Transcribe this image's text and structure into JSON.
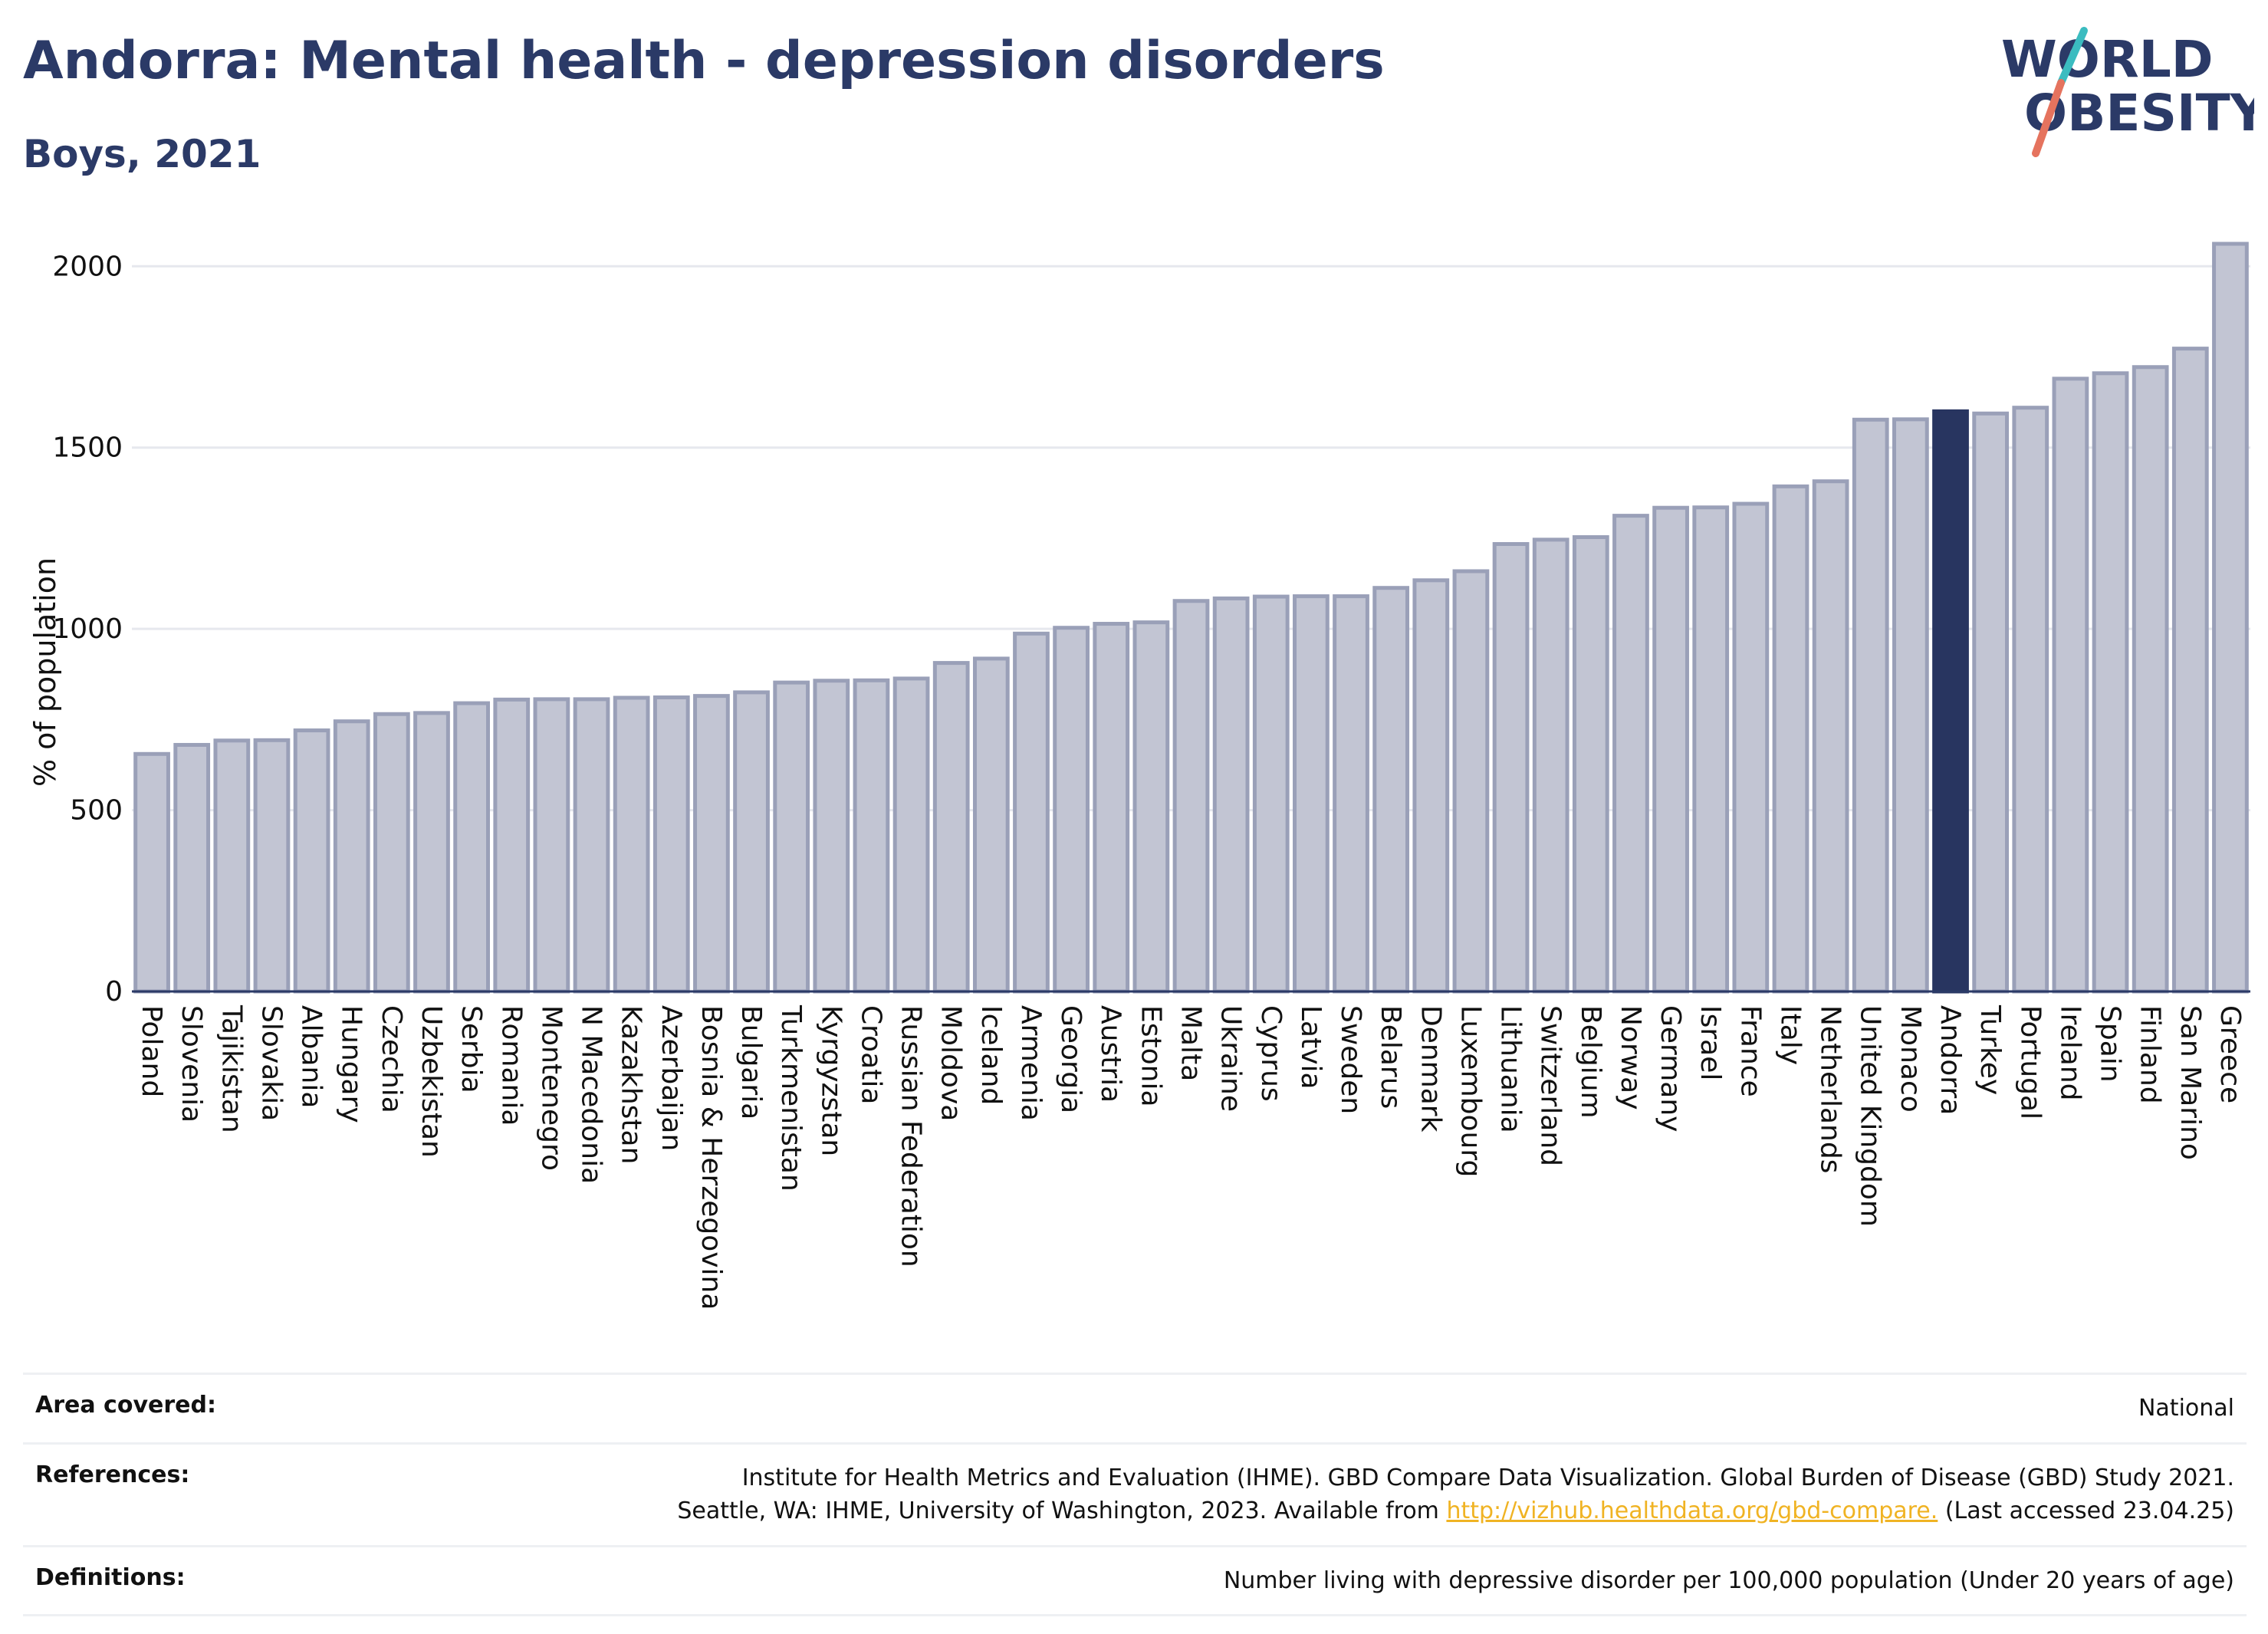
{
  "header": {
    "title": "Andorra: Mental health - depression disorders",
    "subtitle": "Boys, 2021"
  },
  "logo": {
    "line1": "WORLD",
    "line2": "OBESITY",
    "colors": {
      "text": "#2b3a67",
      "slash_top": "#3bbcc0",
      "slash_bottom": "#e5735e"
    }
  },
  "chart_data": {
    "type": "bar",
    "ylabel": "% of population",
    "xlabel": "",
    "ylim": [
      0,
      2100
    ],
    "yticks": [
      0,
      500,
      1000,
      1500,
      2000
    ],
    "grid": true,
    "highlight": "Andorra",
    "colors": {
      "bar": "#c2c5d3",
      "bar_edge": "#9aa0b8",
      "highlight": "#283560"
    },
    "categories": [
      "Poland",
      "Slovenia",
      "Tajikistan",
      "Slovakia",
      "Albania",
      "Hungary",
      "Czechia",
      "Uzbekistan",
      "Serbia",
      "Romania",
      "Montenegro",
      "N Macedonia",
      "Kazakhstan",
      "Azerbaijan",
      "Bosnia & Herzegovina",
      "Bulgaria",
      "Turkmenistan",
      "Kyrgyzstan",
      "Croatia",
      "Russian Federation",
      "Moldova",
      "Iceland",
      "Armenia",
      "Georgia",
      "Austria",
      "Estonia",
      "Malta",
      "Ukraine",
      "Cyprus",
      "Latvia",
      "Sweden",
      "Belarus",
      "Denmark",
      "Luxembourg",
      "Lithuania",
      "Switzerland",
      "Belgium",
      "Norway",
      "Germany",
      "Israel",
      "France",
      "Italy",
      "Netherlands",
      "United Kingdom",
      "Monaco",
      "Andorra",
      "Turkey",
      "Portugal",
      "Ireland",
      "Spain",
      "Finland",
      "San Marino",
      "Greece"
    ],
    "values": [
      655,
      680,
      692,
      693,
      720,
      745,
      765,
      768,
      795,
      805,
      806,
      806,
      810,
      811,
      815,
      825,
      852,
      857,
      858,
      863,
      906,
      918,
      987,
      1003,
      1014,
      1018,
      1077,
      1084,
      1089,
      1090,
      1090,
      1113,
      1134,
      1159,
      1234,
      1246,
      1253,
      1312,
      1334,
      1335,
      1345,
      1393,
      1407,
      1577,
      1578,
      1600,
      1594,
      1610,
      1690,
      1705,
      1722,
      1773,
      2062
    ]
  },
  "footer": {
    "area_label": "Area covered:",
    "area_value": "National",
    "references_label": "References:",
    "references_line1": "Institute for Health Metrics and Evaluation (IHME). GBD Compare Data Visualization. Global Burden of Disease (GBD) Study 2021.",
    "references_line2_pre": "Seattle, WA: IHME, University of Washington, 2023. Available from ",
    "references_link": "http://vizhub.healthdata.org/gbd-compare.",
    "references_line2_post": " (Last accessed 23.04.25)",
    "definitions_label": "Definitions:",
    "definitions_value": "Number living with depressive disorder per 100,000 population (Under 20 years of age)"
  }
}
